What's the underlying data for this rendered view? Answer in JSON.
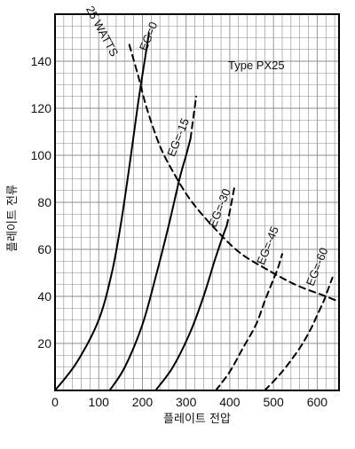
{
  "chart_data": {
    "type": "line",
    "title": "",
    "annotation_type": "Type PX25",
    "xlabel": "플레이트 전압",
    "ylabel": "플레이트 전류",
    "xlim": [
      0,
      650
    ],
    "ylim": [
      0,
      160
    ],
    "xticks": [
      0,
      100,
      200,
      300,
      400,
      500,
      600
    ],
    "yticks": [
      20,
      40,
      60,
      80,
      100,
      120,
      140
    ],
    "grid": true,
    "series": [
      {
        "name": "EG=0",
        "style": "solid",
        "x": [
          0,
          50,
          100,
          130,
          150,
          170,
          190,
          205,
          215
        ],
        "y": [
          0,
          12,
          30,
          50,
          70,
          95,
          122,
          140,
          152
        ]
      },
      {
        "name": "EG=-15",
        "style": "solid",
        "x": [
          125,
          160,
          200,
          230,
          260,
          285,
          300,
          310
        ],
        "y": [
          0,
          10,
          28,
          48,
          70,
          90,
          100,
          107
        ]
      },
      {
        "name": "EG=-15",
        "style": "dashed",
        "x": [
          310,
          318,
          323
        ],
        "y": [
          107,
          118,
          125
        ]
      },
      {
        "name": "EG=-30",
        "style": "solid",
        "x": [
          230,
          270,
          310,
          340,
          365,
          383,
          393
        ],
        "y": [
          0,
          10,
          25,
          40,
          55,
          65,
          70
        ]
      },
      {
        "name": "EG=-30",
        "style": "dashed",
        "x": [
          393,
          402,
          410
        ],
        "y": [
          70,
          78,
          86
        ]
      },
      {
        "name": "EG=-45",
        "style": "dashed",
        "x": [
          368,
          400,
          430,
          460,
          480,
          495,
          510,
          520
        ],
        "y": [
          0,
          8,
          18,
          28,
          38,
          45,
          52,
          58
        ]
      },
      {
        "name": "EG=-60",
        "style": "dashed",
        "x": [
          480,
          520,
          560,
          585,
          600,
          615,
          625,
          635
        ],
        "y": [
          0,
          8,
          18,
          26,
          32,
          38,
          43,
          48
        ]
      },
      {
        "name": "25 WATTS",
        "style": "dashed",
        "x": [
          170,
          190,
          210,
          240,
          270,
          310,
          360,
          420,
          480,
          550,
          620,
          660
        ],
        "y": [
          147,
          134,
          120,
          104,
          93,
          81,
          70,
          59,
          52,
          45,
          40,
          37
        ]
      }
    ],
    "labels": [
      {
        "text": "25 WATTS",
        "x": 100,
        "y": 152,
        "rotate": 62
      },
      {
        "text": "EG=0",
        "x": 222,
        "y": 150,
        "rotate": -68
      },
      {
        "text": "EG=-15",
        "x": 290,
        "y": 107,
        "rotate": -68
      },
      {
        "text": "EG=-30",
        "x": 385,
        "y": 77,
        "rotate": -68
      },
      {
        "text": "EG=-45",
        "x": 495,
        "y": 61,
        "rotate": -68
      },
      {
        "text": "EG=-60",
        "x": 608,
        "y": 52,
        "rotate": -68
      }
    ]
  }
}
